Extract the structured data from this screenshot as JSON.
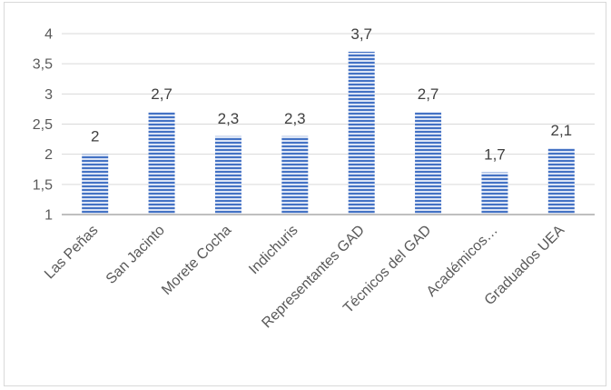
{
  "chart_data": {
    "type": "bar",
    "title": "",
    "xlabel": "",
    "ylabel": "",
    "categories": [
      "Las Peñas",
      "San Jacinto",
      "Morete Cocha",
      "Indichuris",
      "Representantes GAD",
      "Técnicos del GAD",
      "Académicos…",
      "Graduados UEA"
    ],
    "values": [
      2,
      2.7,
      2.3,
      2.3,
      3.7,
      2.7,
      1.7,
      2.1
    ],
    "value_labels": [
      "2",
      "2,7",
      "2,3",
      "2,3",
      "3,7",
      "2,7",
      "1,7",
      "2,1"
    ],
    "ylim": [
      1,
      4
    ],
    "yticks": [
      1,
      1.5,
      2,
      2.5,
      3,
      3.5,
      4
    ],
    "ytick_labels": [
      "1",
      "1,5",
      "2",
      "2,5",
      "3",
      "3,5",
      "4"
    ],
    "grid": true,
    "legend": "none",
    "bar_color": "#4472c4",
    "bar_stripe_color": "#dbe4f5"
  }
}
